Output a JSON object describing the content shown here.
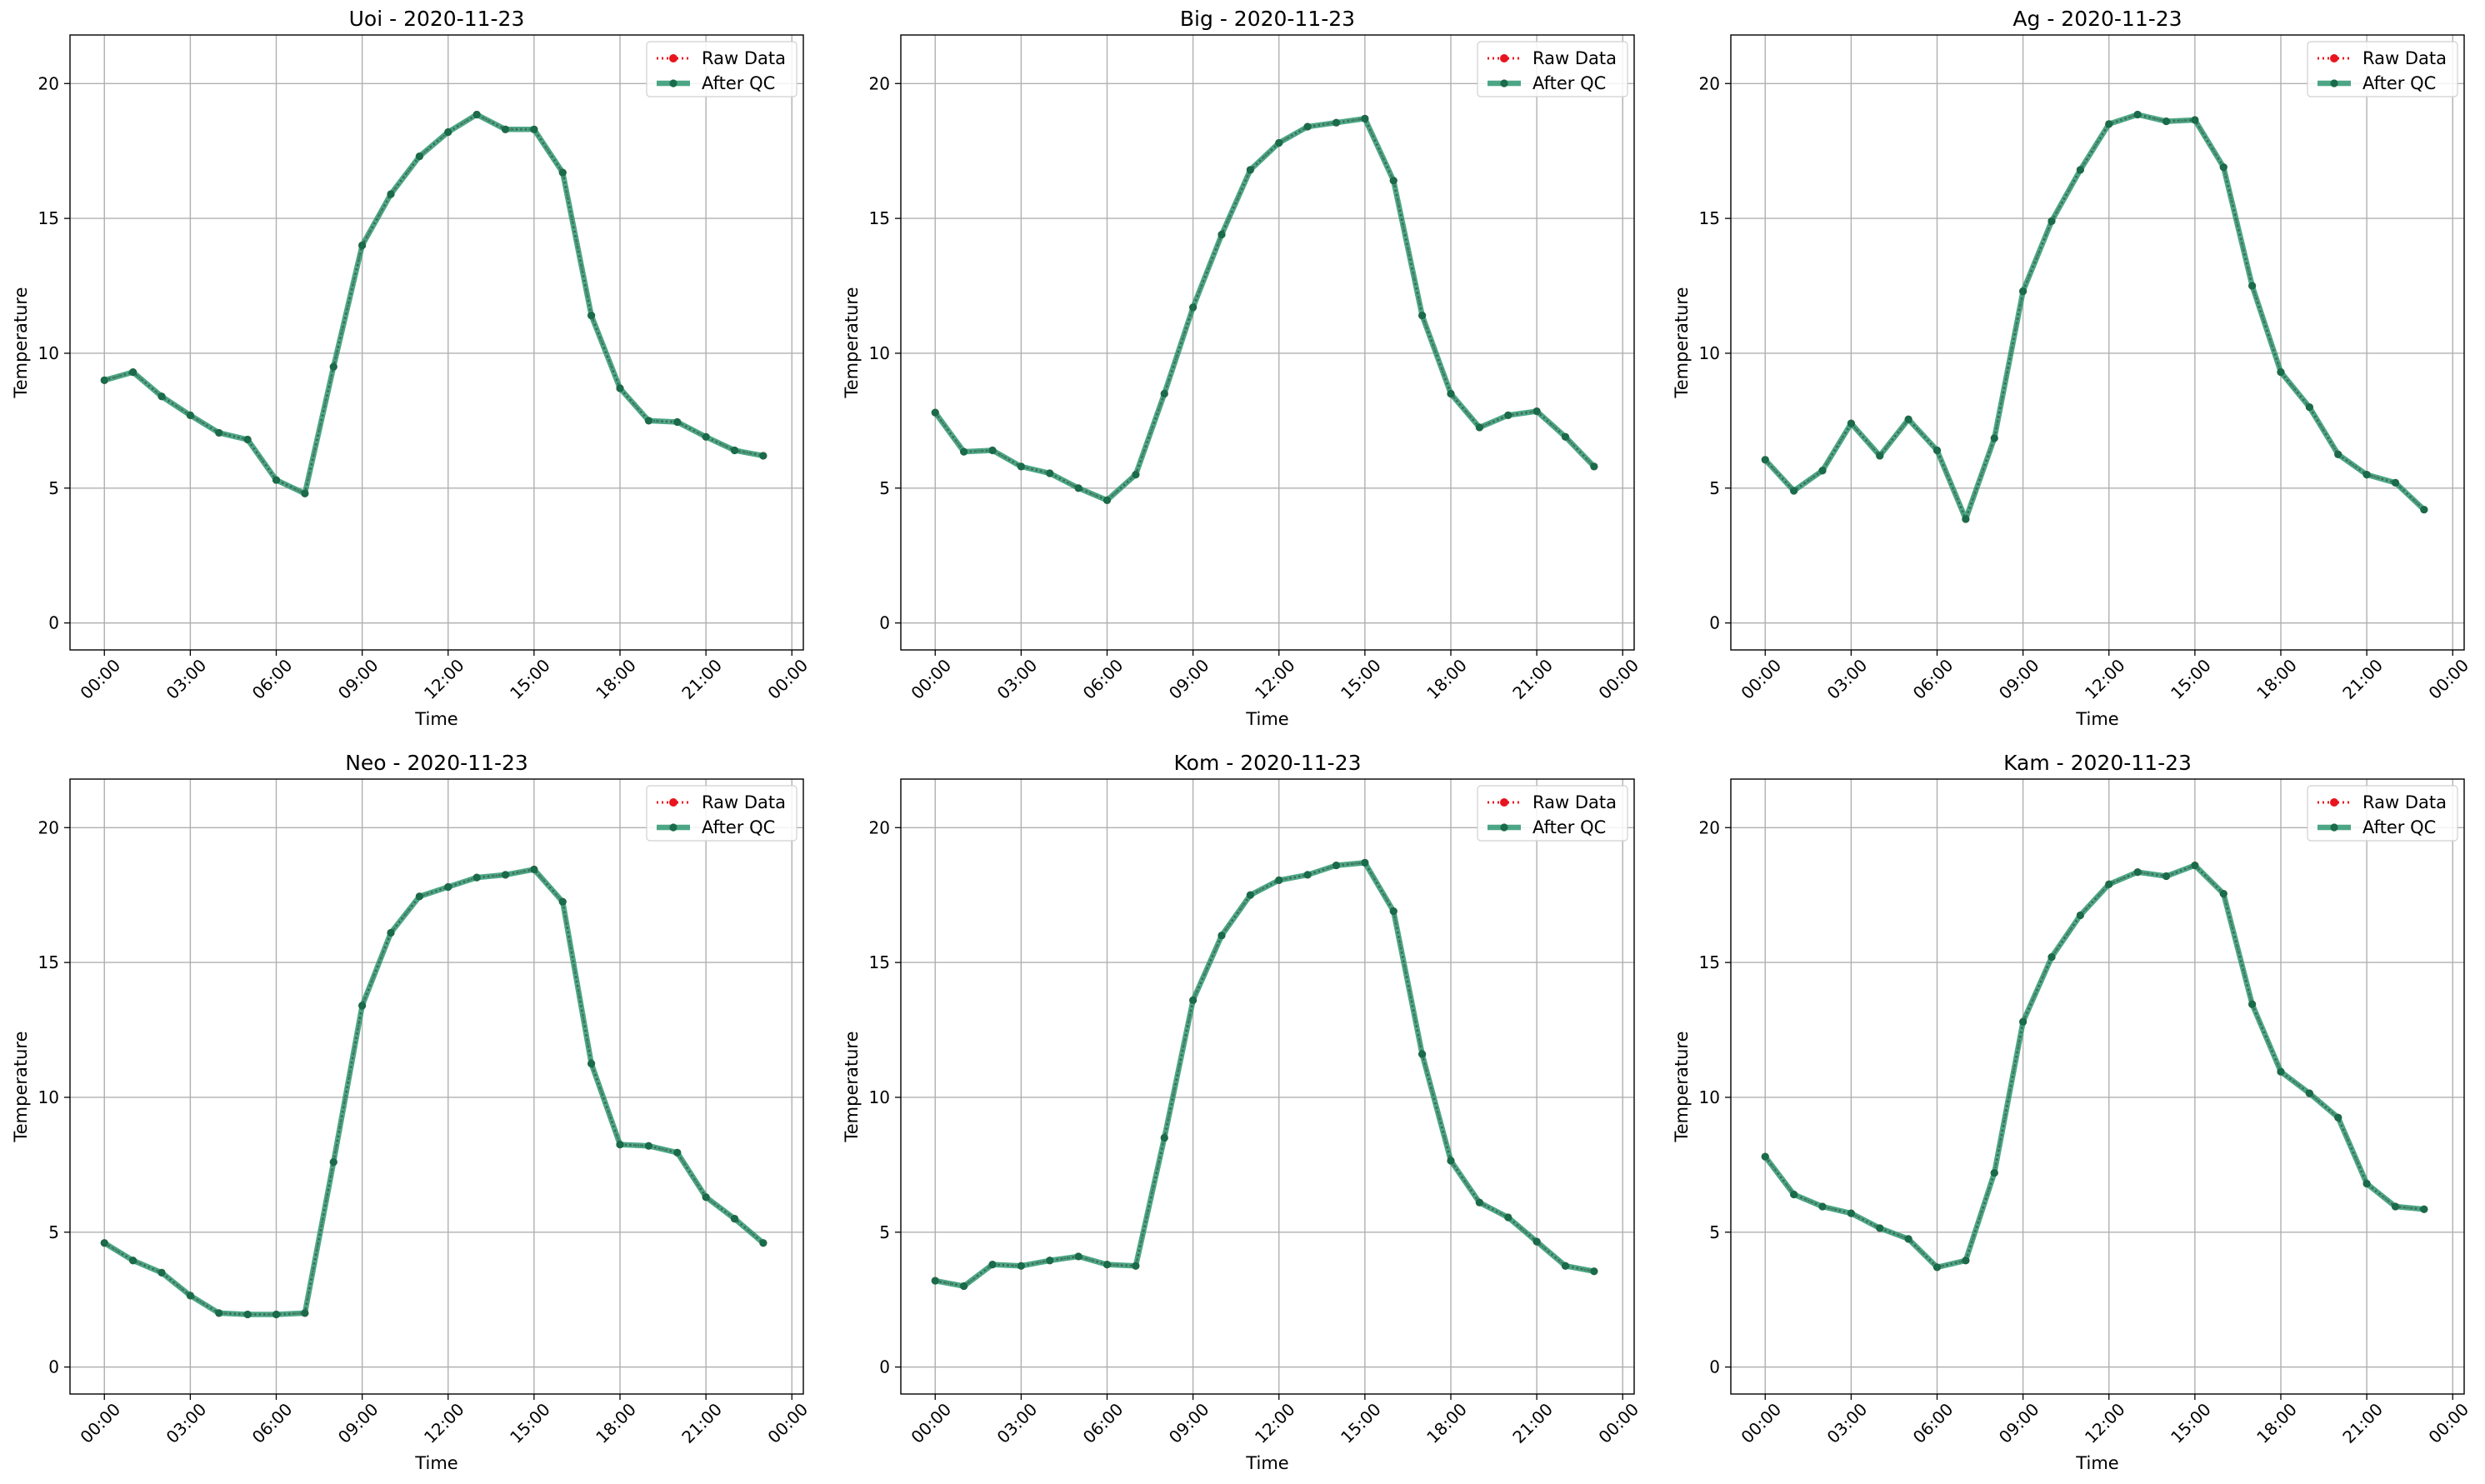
{
  "figure": {
    "layout": "2x3 grid of line charts"
  },
  "legend_entries": {
    "raw": "Raw Data",
    "qc": "After QC"
  },
  "colors": {
    "raw": "#e8141e",
    "qc": "#26946c",
    "qc_marker": "#1a6b4a",
    "grid": "#b0b0b0"
  },
  "chart_data": [
    {
      "type": "line",
      "title": "Uoi - 2020-11-23",
      "xlabel": "Time",
      "ylabel": "Temperature",
      "x_ticks": [
        "00:00",
        "03:00",
        "06:00",
        "09:00",
        "12:00",
        "15:00",
        "18:00",
        "21:00",
        "00:00"
      ],
      "x_hours": [
        0,
        1,
        2,
        3,
        4,
        5,
        6,
        7,
        8,
        9,
        10,
        11,
        12,
        13,
        14,
        15,
        16,
        17,
        18,
        19,
        20,
        21,
        22,
        23
      ],
      "y_ticks": [
        0,
        5,
        10,
        15,
        20
      ],
      "ylim": [
        -1,
        21.8
      ],
      "xlim": [
        -1.2,
        24.4
      ],
      "grid": true,
      "legend_position": "top-right",
      "series": [
        {
          "name": "Raw Data",
          "style": "dotted-marker",
          "values": [
            9.0,
            9.3,
            8.4,
            7.7,
            7.05,
            6.8,
            5.3,
            4.8,
            9.5,
            14.0,
            15.9,
            17.3,
            18.2,
            18.85,
            18.3,
            18.3,
            16.7,
            11.4,
            8.7,
            7.5,
            7.45,
            6.9,
            6.4,
            6.2
          ]
        },
        {
          "name": "After QC",
          "style": "solid-marker",
          "values": [
            9.0,
            9.3,
            8.4,
            7.7,
            7.05,
            6.8,
            5.3,
            4.8,
            9.5,
            14.0,
            15.9,
            17.3,
            18.2,
            18.85,
            18.3,
            18.3,
            16.7,
            11.4,
            8.7,
            7.5,
            7.45,
            6.9,
            6.4,
            6.2
          ]
        }
      ]
    },
    {
      "type": "line",
      "title": "Big - 2020-11-23",
      "xlabel": "Time",
      "ylabel": "Temperature",
      "x_ticks": [
        "00:00",
        "03:00",
        "06:00",
        "09:00",
        "12:00",
        "15:00",
        "18:00",
        "21:00",
        "00:00"
      ],
      "x_hours": [
        0,
        1,
        2,
        3,
        4,
        5,
        6,
        7,
        8,
        9,
        10,
        11,
        12,
        13,
        14,
        15,
        16,
        17,
        18,
        19,
        20,
        21,
        22,
        23
      ],
      "y_ticks": [
        0,
        5,
        10,
        15,
        20
      ],
      "ylim": [
        -1,
        21.8
      ],
      "xlim": [
        -1.2,
        24.4
      ],
      "grid": true,
      "legend_position": "top-right",
      "series": [
        {
          "name": "Raw Data",
          "style": "dotted-marker",
          "values": [
            7.8,
            6.35,
            6.4,
            5.8,
            5.55,
            5.0,
            4.55,
            5.5,
            8.5,
            11.7,
            14.4,
            16.8,
            17.8,
            18.4,
            18.55,
            18.7,
            16.4,
            11.4,
            8.5,
            7.25,
            7.7,
            7.85,
            6.9,
            5.8
          ]
        },
        {
          "name": "After QC",
          "style": "solid-marker",
          "values": [
            7.8,
            6.35,
            6.4,
            5.8,
            5.55,
            5.0,
            4.55,
            5.5,
            8.5,
            11.7,
            14.4,
            16.8,
            17.8,
            18.4,
            18.55,
            18.7,
            16.4,
            11.4,
            8.5,
            7.25,
            7.7,
            7.85,
            6.9,
            5.8
          ]
        }
      ]
    },
    {
      "type": "line",
      "title": "Ag - 2020-11-23",
      "xlabel": "Time",
      "ylabel": "Temperature",
      "x_ticks": [
        "00:00",
        "03:00",
        "06:00",
        "09:00",
        "12:00",
        "15:00",
        "18:00",
        "21:00",
        "00:00"
      ],
      "x_hours": [
        0,
        1,
        2,
        3,
        4,
        5,
        6,
        7,
        8,
        9,
        10,
        11,
        12,
        13,
        14,
        15,
        16,
        17,
        18,
        19,
        20,
        21,
        22,
        23
      ],
      "y_ticks": [
        0,
        5,
        10,
        15,
        20
      ],
      "ylim": [
        -1,
        21.8
      ],
      "xlim": [
        -1.2,
        24.4
      ],
      "grid": true,
      "legend_position": "top-right",
      "series": [
        {
          "name": "Raw Data",
          "style": "dotted-marker",
          "values": [
            6.05,
            4.9,
            5.65,
            7.4,
            6.2,
            7.55,
            6.4,
            3.85,
            6.85,
            12.3,
            14.9,
            16.8,
            18.5,
            18.85,
            18.6,
            18.65,
            16.9,
            12.5,
            9.3,
            8.0,
            6.25,
            5.5,
            5.2,
            4.2
          ]
        },
        {
          "name": "After QC",
          "style": "solid-marker",
          "values": [
            6.05,
            4.9,
            5.65,
            7.4,
            6.2,
            7.55,
            6.4,
            3.85,
            6.85,
            12.3,
            14.9,
            16.8,
            18.5,
            18.85,
            18.6,
            18.65,
            16.9,
            12.5,
            9.3,
            8.0,
            6.25,
            5.5,
            5.2,
            4.2
          ]
        }
      ]
    },
    {
      "type": "line",
      "title": "Neo - 2020-11-23",
      "xlabel": "Time",
      "ylabel": "Temperature",
      "x_ticks": [
        "00:00",
        "03:00",
        "06:00",
        "09:00",
        "12:00",
        "15:00",
        "18:00",
        "21:00",
        "00:00"
      ],
      "x_hours": [
        0,
        1,
        2,
        3,
        4,
        5,
        6,
        7,
        8,
        9,
        10,
        11,
        12,
        13,
        14,
        15,
        16,
        17,
        18,
        19,
        20,
        21,
        22,
        23
      ],
      "y_ticks": [
        0,
        5,
        10,
        15,
        20
      ],
      "ylim": [
        -1,
        21.8
      ],
      "xlim": [
        -1.2,
        24.4
      ],
      "grid": true,
      "legend_position": "top-right",
      "series": [
        {
          "name": "Raw Data",
          "style": "dotted-marker",
          "values": [
            4.6,
            3.95,
            3.5,
            2.65,
            2.0,
            1.95,
            1.95,
            2.0,
            7.6,
            13.4,
            16.1,
            17.45,
            17.8,
            18.15,
            18.25,
            18.45,
            17.25,
            11.25,
            8.25,
            8.2,
            7.95,
            6.3,
            5.5,
            4.6
          ]
        },
        {
          "name": "After QC",
          "style": "solid-marker",
          "values": [
            4.6,
            3.95,
            3.5,
            2.65,
            2.0,
            1.95,
            1.95,
            2.0,
            7.6,
            13.4,
            16.1,
            17.45,
            17.8,
            18.15,
            18.25,
            18.45,
            17.25,
            11.25,
            8.25,
            8.2,
            7.95,
            6.3,
            5.5,
            4.6
          ]
        }
      ]
    },
    {
      "type": "line",
      "title": "Kom - 2020-11-23",
      "xlabel": "Time",
      "ylabel": "Temperature",
      "x_ticks": [
        "00:00",
        "03:00",
        "06:00",
        "09:00",
        "12:00",
        "15:00",
        "18:00",
        "21:00",
        "00:00"
      ],
      "x_hours": [
        0,
        1,
        2,
        3,
        4,
        5,
        6,
        7,
        8,
        9,
        10,
        11,
        12,
        13,
        14,
        15,
        16,
        17,
        18,
        19,
        20,
        21,
        22,
        23
      ],
      "y_ticks": [
        0,
        5,
        10,
        15,
        20
      ],
      "ylim": [
        -1,
        21.8
      ],
      "xlim": [
        -1.2,
        24.4
      ],
      "grid": true,
      "legend_position": "top-right",
      "series": [
        {
          "name": "Raw Data",
          "style": "dotted-marker",
          "values": [
            3.2,
            3.0,
            3.8,
            3.75,
            3.95,
            4.1,
            3.8,
            3.75,
            8.5,
            13.6,
            16.0,
            17.5,
            18.05,
            18.25,
            18.6,
            18.7,
            16.9,
            11.6,
            7.65,
            6.1,
            5.55,
            4.65,
            3.75,
            3.55
          ]
        },
        {
          "name": "After QC",
          "style": "solid-marker",
          "values": [
            3.2,
            3.0,
            3.8,
            3.75,
            3.95,
            4.1,
            3.8,
            3.75,
            8.5,
            13.6,
            16.0,
            17.5,
            18.05,
            18.25,
            18.6,
            18.7,
            16.9,
            11.6,
            7.65,
            6.1,
            5.55,
            4.65,
            3.75,
            3.55
          ]
        }
      ]
    },
    {
      "type": "line",
      "title": "Kam - 2020-11-23",
      "xlabel": "Time",
      "ylabel": "Temperature",
      "x_ticks": [
        "00:00",
        "03:00",
        "06:00",
        "09:00",
        "12:00",
        "15:00",
        "18:00",
        "21:00",
        "00:00"
      ],
      "x_hours": [
        0,
        1,
        2,
        3,
        4,
        5,
        6,
        7,
        8,
        9,
        10,
        11,
        12,
        13,
        14,
        15,
        16,
        17,
        18,
        19,
        20,
        21,
        22,
        23
      ],
      "y_ticks": [
        0,
        5,
        10,
        15,
        20
      ],
      "ylim": [
        -1,
        21.8
      ],
      "xlim": [
        -1.2,
        24.4
      ],
      "grid": true,
      "legend_position": "top-right",
      "series": [
        {
          "name": "Raw Data",
          "style": "dotted-marker",
          "values": [
            7.8,
            6.4,
            5.95,
            5.7,
            5.15,
            4.75,
            3.7,
            3.95,
            7.2,
            12.8,
            15.2,
            16.75,
            17.9,
            18.35,
            18.2,
            18.6,
            17.55,
            13.45,
            10.95,
            10.15,
            9.25,
            6.8,
            5.95,
            5.85
          ]
        },
        {
          "name": "After QC",
          "style": "solid-marker",
          "values": [
            7.8,
            6.4,
            5.95,
            5.7,
            5.15,
            4.75,
            3.7,
            3.95,
            7.2,
            12.8,
            15.2,
            16.75,
            17.9,
            18.35,
            18.2,
            18.6,
            17.55,
            13.45,
            10.95,
            10.15,
            9.25,
            6.8,
            5.95,
            5.85
          ]
        }
      ]
    }
  ]
}
